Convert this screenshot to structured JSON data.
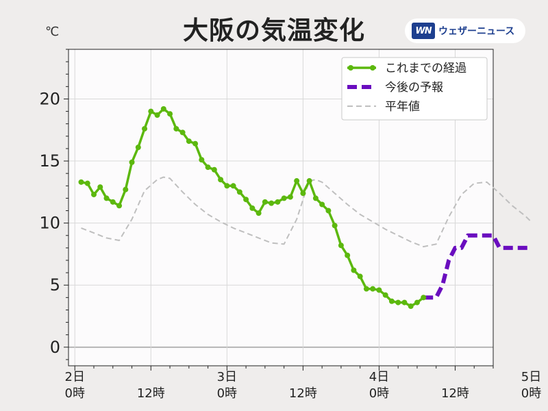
{
  "header": {
    "title": "大阪の気温変化",
    "unit": "℃",
    "brand_logo": "WN",
    "brand_name": "ウェザーニュース"
  },
  "colors": {
    "observed": "#5cb80e",
    "forecast": "#6a0dbf",
    "normal": "#bfbfbf",
    "plot_bg": "#fcfbfc",
    "grid": "#d8d8d8",
    "zero_line": "#b5b5b5"
  },
  "chart_data": {
    "type": "line",
    "title": "大阪の気温変化",
    "ylabel": "℃",
    "ylim": [
      -1.5,
      24
    ],
    "yticks": [
      0,
      5,
      10,
      15,
      20
    ],
    "xlim": [
      -1,
      66
    ],
    "x_unit": "hours since 2日 0時",
    "xtick_positions": [
      0,
      12,
      24,
      36,
      48,
      60,
      72
    ],
    "xtick_labels": [
      [
        "2日",
        "0時"
      ],
      [
        "",
        "12時"
      ],
      [
        "3日",
        "0時"
      ],
      [
        "",
        "12時"
      ],
      [
        "4日",
        "0時"
      ],
      [
        "",
        "12時"
      ],
      [
        "5日",
        "0時"
      ]
    ],
    "grid": true,
    "legend_position": "top-right",
    "series": [
      {
        "name": "これまでの経過",
        "style": "solid-markers",
        "x": [
          1,
          2,
          3,
          4,
          5,
          6,
          7,
          8,
          9,
          10,
          11,
          12,
          13,
          14,
          15,
          16,
          17,
          18,
          19,
          20,
          21,
          22,
          23,
          24,
          25,
          26,
          27,
          28,
          29,
          30,
          31,
          32,
          33,
          34,
          35,
          36,
          37,
          38,
          39,
          40,
          41,
          42,
          43,
          44,
          45,
          46,
          47,
          48,
          49,
          50,
          51,
          52,
          53,
          54,
          55
        ],
        "y": [
          13.3,
          13.2,
          12.3,
          12.9,
          12.0,
          11.7,
          11.4,
          12.7,
          14.9,
          16.1,
          17.6,
          19.0,
          18.7,
          19.2,
          18.8,
          17.6,
          17.3,
          16.6,
          16.4,
          15.1,
          14.5,
          14.3,
          13.5,
          13.0,
          13.0,
          12.5,
          11.9,
          11.2,
          10.8,
          11.7,
          11.6,
          11.7,
          12.0,
          12.1,
          13.4,
          12.4,
          13.4,
          12.0,
          11.5,
          11.0,
          9.8,
          8.2,
          7.4,
          6.2,
          5.7,
          4.7,
          4.7,
          4.6,
          4.2,
          3.7,
          3.6,
          3.6,
          3.3,
          3.6,
          4.0
        ]
      },
      {
        "name": "今後の予報",
        "style": "dashed-thick",
        "x": [
          55,
          56,
          57,
          58,
          59,
          60,
          61,
          62,
          63,
          64,
          65,
          66,
          67,
          68,
          69,
          70,
          71,
          72
        ],
        "y": [
          4.0,
          4.0,
          4.0,
          5.0,
          7.0,
          8.0,
          8.0,
          9.0,
          9.0,
          9.0,
          9.0,
          9.0,
          8.0,
          8.0,
          8.0,
          8.0,
          8.0,
          8.0
        ]
      },
      {
        "name": "平年値",
        "style": "dashed-thin",
        "x": [
          1,
          3,
          5,
          7,
          9,
          11,
          13,
          14,
          15,
          17,
          19,
          21,
          23,
          25,
          27,
          29,
          31,
          33,
          35,
          36,
          37,
          38,
          39,
          41,
          43,
          45,
          47,
          49,
          51,
          53,
          55,
          57,
          59,
          61,
          63,
          65,
          67,
          69,
          71,
          72
        ],
        "y": [
          9.6,
          9.2,
          8.8,
          8.6,
          10.3,
          12.6,
          13.5,
          13.7,
          13.6,
          12.5,
          11.5,
          10.7,
          10.1,
          9.6,
          9.2,
          8.8,
          8.4,
          8.3,
          10.3,
          11.9,
          13.4,
          13.5,
          13.3,
          12.4,
          11.5,
          10.7,
          10.1,
          9.5,
          9.0,
          8.5,
          8.1,
          8.3,
          10.5,
          12.3,
          13.2,
          13.3,
          12.4,
          11.4,
          10.6,
          10.1
        ]
      }
    ]
  }
}
